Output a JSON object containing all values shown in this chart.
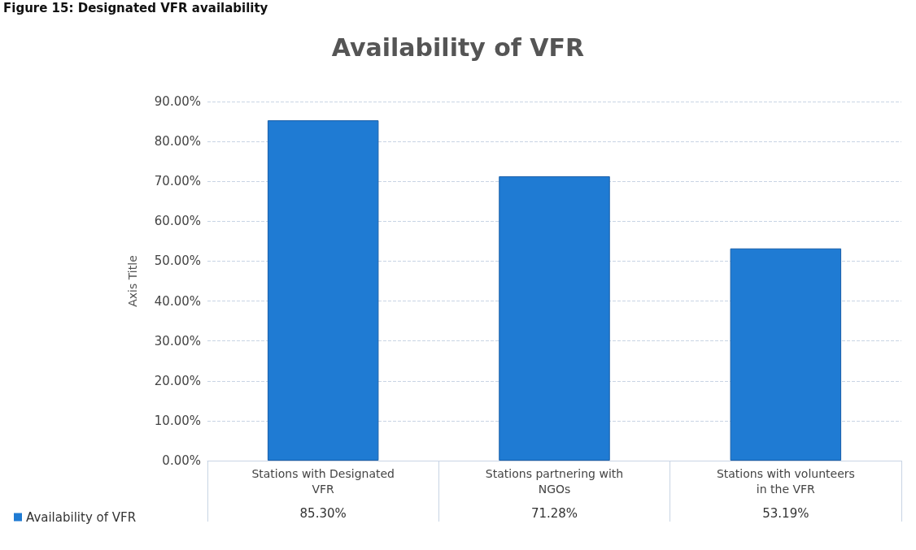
{
  "chart_data": {
    "type": "bar",
    "title": "Availability of VFR",
    "ylabel": "Axis Title",
    "annotations": [
      "Figure 15: Designated VFR availability"
    ],
    "categories": [
      "Stations with Designated\nVFR",
      "Stations partnering with\nNGOs",
      "Stations with volunteers\nin the VFR"
    ],
    "series": [
      {
        "name": "Availability of VFR",
        "color": "#1f7bd3",
        "values": [
          85.3,
          71.28,
          53.19
        ],
        "value_labels": [
          "85.30%",
          "71.28%",
          "53.19%"
        ]
      }
    ],
    "ylim": [
      0,
      90
    ],
    "yticks": [
      {
        "value": 0,
        "label": "0.00%"
      },
      {
        "value": 10,
        "label": "10.00%"
      },
      {
        "value": 20,
        "label": "20.00%"
      },
      {
        "value": 30,
        "label": "30.00%"
      },
      {
        "value": 40,
        "label": "40.00%"
      },
      {
        "value": 50,
        "label": "50.00%"
      },
      {
        "value": 60,
        "label": "60.00%"
      },
      {
        "value": 70,
        "label": "70.00%"
      },
      {
        "value": 80,
        "label": "80.00%"
      },
      {
        "value": 90,
        "label": "90.00%"
      }
    ],
    "grid": "y",
    "legend": "bottom left"
  }
}
